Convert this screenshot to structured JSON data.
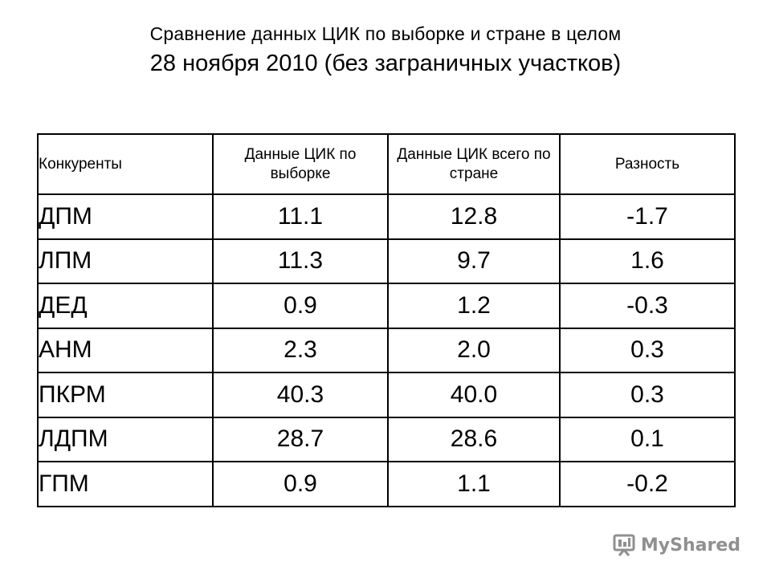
{
  "title": {
    "line1": "Сравнение данных ЦИК по выборке и стране в целом",
    "line2": "28 ноября 2010 (без заграничных участков)"
  },
  "table": {
    "headers": {
      "name": "Конкуренты",
      "sample": "Данные ЦИК по выборке",
      "country": "Данные ЦИК всего по стране",
      "diff": "Разность"
    },
    "rows": [
      {
        "name": "ДПМ",
        "sample": "11.1",
        "country": "12.8",
        "diff": "-1.7"
      },
      {
        "name": "ЛПМ",
        "sample": "11.3",
        "country": "9.7",
        "diff": "1.6"
      },
      {
        "name": "ДЕД",
        "sample": "0.9",
        "country": "1.2",
        "diff": "-0.3"
      },
      {
        "name": "АНМ",
        "sample": "2.3",
        "country": "2.0",
        "diff": "0.3"
      },
      {
        "name": "ПКРМ",
        "sample": "40.3",
        "country": "40.0",
        "diff": "0.3"
      },
      {
        "name": "ЛДПМ",
        "sample": "28.7",
        "country": "28.6",
        "diff": "0.1"
      },
      {
        "name": "ГПМ",
        "sample": "0.9",
        "country": "1.1",
        "diff": "-0.2"
      }
    ]
  },
  "watermark": {
    "text": "MyShared",
    "icon": "presentation-icon",
    "color": "#7d7d7d"
  }
}
